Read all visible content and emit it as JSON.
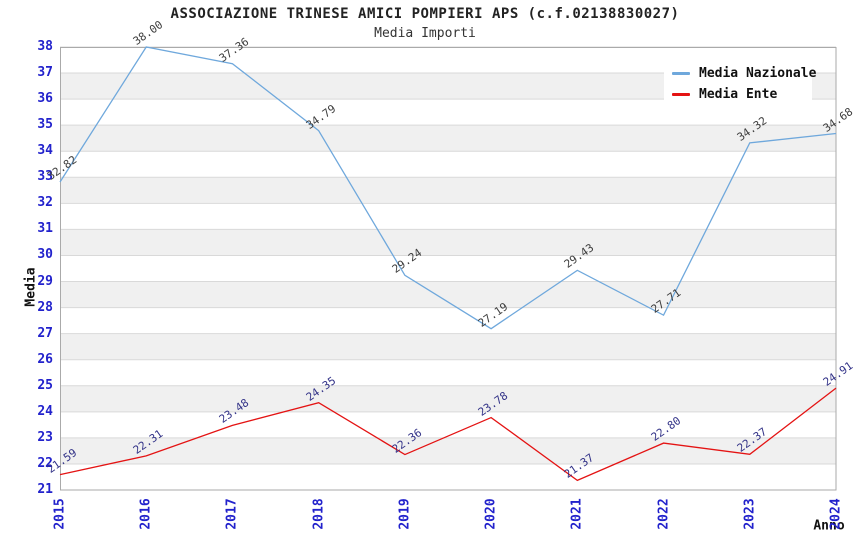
{
  "header": {
    "title": "ASSOCIAZIONE TRINESE AMICI POMPIERI APS (c.f.02138830027)",
    "subtitle": "Media Importi"
  },
  "chart_data": {
    "type": "line",
    "title": "ASSOCIAZIONE TRINESE AMICI POMPIERI APS (c.f.02138830027)",
    "subtitle": "Media Importi",
    "xlabel": "Anno",
    "ylabel": "Media",
    "x": [
      "2015",
      "2016",
      "2017",
      "2018",
      "2019",
      "2020",
      "2021",
      "2022",
      "2023",
      "2024"
    ],
    "series": [
      {
        "name": "Media Nazionale",
        "color": "#6fa8dc",
        "label_color": "#3d3d3d",
        "values": [
          32.82,
          38.0,
          37.36,
          34.79,
          29.24,
          27.19,
          29.43,
          27.71,
          34.32,
          34.68
        ]
      },
      {
        "name": "Media Ente",
        "color": "#e41313",
        "label_color": "#333388",
        "values": [
          21.59,
          22.31,
          23.48,
          24.35,
          22.36,
          23.78,
          21.37,
          22.8,
          22.37,
          24.91
        ]
      }
    ],
    "ylim": [
      21,
      38
    ],
    "y_ticks": [
      21,
      22,
      23,
      24,
      25,
      26,
      27,
      28,
      29,
      30,
      31,
      32,
      33,
      34,
      35,
      36,
      37,
      38
    ],
    "grid": "horizontal-bands",
    "legend_position": "top-right",
    "colors": {
      "axis_tick_text": "#2222cc",
      "band_alt": "#f0f0f0",
      "gridline": "#d9d9d9",
      "plot_border": "#aaaaaa",
      "background": "#ffffff"
    }
  }
}
